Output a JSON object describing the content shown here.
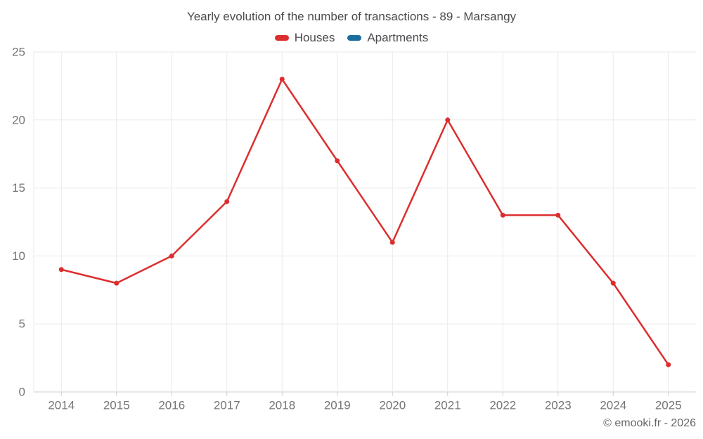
{
  "title": "Yearly evolution of the number of transactions - 89 - Marsangy",
  "legend": {
    "items": [
      {
        "label": "Houses",
        "color": "#dc2e2e"
      },
      {
        "label": "Apartments",
        "color": "#1a6d9c"
      }
    ]
  },
  "copyright": "© emooki.fr - 2026",
  "chart_data": {
    "type": "line",
    "title": "Yearly evolution of the number of transactions - 89 - Marsangy",
    "categories": [
      "2014",
      "2015",
      "2016",
      "2017",
      "2018",
      "2019",
      "2020",
      "2021",
      "2022",
      "2023",
      "2024",
      "2025"
    ],
    "series": [
      {
        "name": "Houses",
        "color": "#dc2e2e",
        "values": [
          9,
          8,
          10,
          14,
          23,
          17,
          11,
          20,
          13,
          13,
          8,
          2
        ]
      },
      {
        "name": "Apartments",
        "color": "#1a6d9c",
        "values": []
      }
    ],
    "xlabel": "",
    "ylabel": "",
    "ylim": [
      0,
      25
    ],
    "yticks": [
      0,
      5,
      10,
      15,
      20,
      25
    ],
    "grid": true,
    "legend_position": "top",
    "annotation": "© emooki.fr - 2026",
    "colors": {
      "grid_line": "#e9e9e9",
      "axis_line": "#cfcfcf",
      "tick": "#cfcfcf",
      "axis_label": "#757575",
      "title_text": "#4b4b4f"
    }
  }
}
